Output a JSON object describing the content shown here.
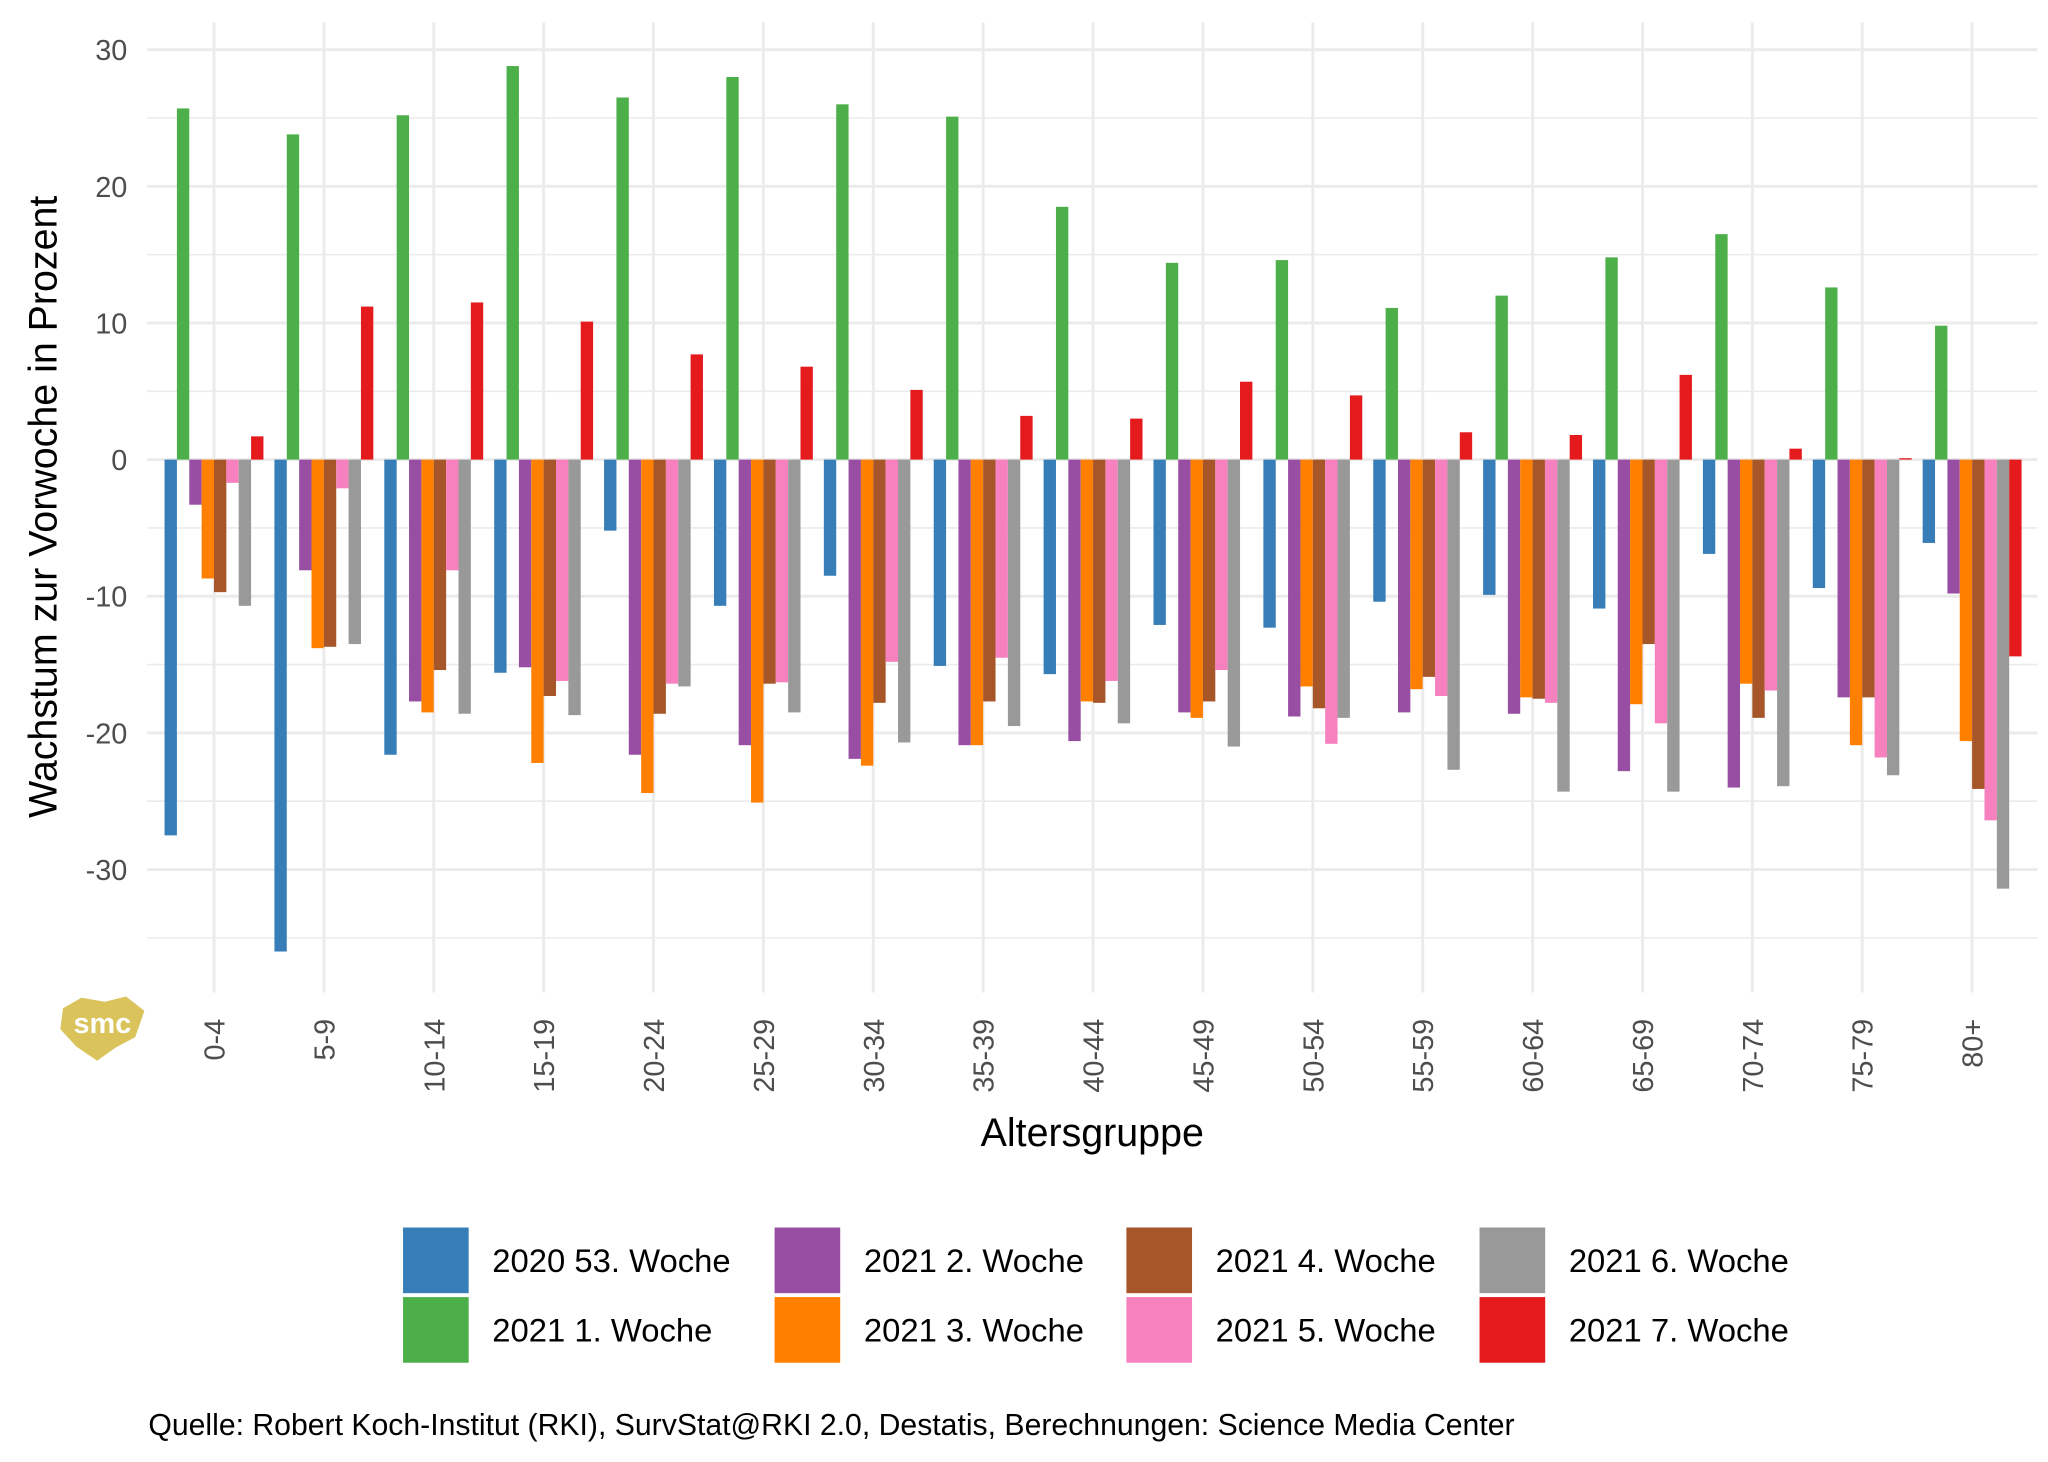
{
  "chart_data": {
    "type": "bar",
    "x_label": "Altersgruppe",
    "y_label": "Wachstum zur Vorwoche in Prozent",
    "caption": "Quelle: Robert Koch-Institut (RKI), SurvStat@RKI 2.0, Destatis, Berechnungen: Science Media Center",
    "logo_text": "smc",
    "categories": [
      "0-4",
      "5-9",
      "10-14",
      "15-19",
      "20-24",
      "25-29",
      "30-34",
      "35-39",
      "40-44",
      "45-49",
      "50-54",
      "55-59",
      "60-64",
      "65-69",
      "70-74",
      "75-79",
      "80+"
    ],
    "ylim": [
      -39,
      32
    ],
    "yticks": [
      -30,
      -20,
      -10,
      0,
      10,
      20,
      30
    ],
    "grid": true,
    "legend_position": "bottom",
    "series": [
      {
        "name": "2020 53. Woche",
        "color": "#377eb8",
        "values": [
          -27.5,
          -36,
          -21.6,
          -15.6,
          -5.2,
          -10.7,
          -8.5,
          -15.1,
          -15.7,
          -12.1,
          -12.3,
          -10.4,
          -9.9,
          -10.9,
          -6.9,
          -9.4,
          -6.1
        ]
      },
      {
        "name": "2021 1. Woche",
        "color": "#4daf4a",
        "values": [
          25.7,
          23.8,
          25.2,
          28.8,
          26.5,
          28,
          26,
          25.1,
          18.5,
          14.4,
          14.6,
          11.1,
          12,
          14.8,
          16.5,
          12.6,
          9.8
        ]
      },
      {
        "name": "2021 2. Woche",
        "color": "#984ea3",
        "values": [
          -3.3,
          -8.1,
          -17.7,
          -15.2,
          -21.6,
          -20.9,
          -21.9,
          -20.9,
          -20.6,
          -18.5,
          -18.8,
          -18.5,
          -18.6,
          -22.8,
          -24,
          -17.4,
          -9.8
        ]
      },
      {
        "name": "2021 3. Woche",
        "color": "#ff7f00",
        "values": [
          -8.7,
          -13.8,
          -18.5,
          -22.2,
          -24.4,
          -25.1,
          -22.4,
          -20.9,
          -17.7,
          -18.9,
          -16.6,
          -16.8,
          -17.4,
          -17.9,
          -16.4,
          -20.9,
          -20.6
        ]
      },
      {
        "name": "2021 4. Woche",
        "color": "#a65628",
        "values": [
          -9.7,
          -13.7,
          -15.4,
          -17.3,
          -18.6,
          -16.4,
          -17.8,
          -17.7,
          -17.8,
          -17.7,
          -18.2,
          -15.9,
          -17.5,
          -13.5,
          -18.9,
          -17.4,
          -24.1
        ]
      },
      {
        "name": "2021 5. Woche",
        "color": "#f781bf",
        "values": [
          -1.7,
          -2.1,
          -8.1,
          -16.2,
          -16.4,
          -16.3,
          -14.8,
          -14.5,
          -16.2,
          -15.4,
          -20.8,
          -17.3,
          -17.8,
          -19.3,
          -16.9,
          -21.8,
          -26.4
        ]
      },
      {
        "name": "2021 6. Woche",
        "color": "#999999",
        "values": [
          -10.7,
          -13.5,
          -18.6,
          -18.7,
          -16.6,
          -18.5,
          -20.7,
          -19.5,
          -19.3,
          -21,
          -18.9,
          -22.7,
          -24.3,
          -24.3,
          -23.9,
          -23.1,
          -31.4
        ]
      },
      {
        "name": "2021 7. Woche",
        "color": "#e41a1c",
        "values": [
          1.7,
          11.2,
          11.5,
          10.1,
          7.7,
          6.8,
          5.1,
          3.2,
          3,
          5.7,
          4.7,
          2,
          1.8,
          6.2,
          0.8,
          0.1,
          -14.4
        ]
      }
    ]
  }
}
